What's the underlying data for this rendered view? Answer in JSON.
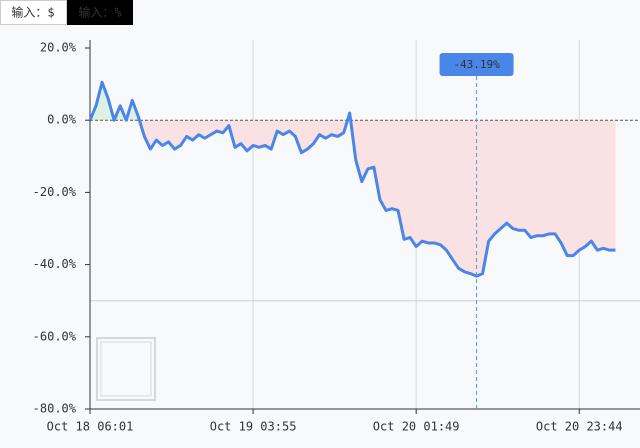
{
  "toggle": {
    "options": [
      "输入：$",
      "输入：%"
    ],
    "active": 1
  },
  "chart_data": {
    "type": "area-line",
    "categories": [
      "Oct 18 06:01",
      null,
      null,
      null,
      null,
      null,
      null,
      null,
      null,
      null,
      null,
      null,
      null,
      null,
      null,
      null,
      null,
      null,
      null,
      null,
      null,
      null,
      null,
      null,
      null,
      null,
      null,
      "Oct 19 03:55",
      null,
      null,
      null,
      null,
      null,
      null,
      null,
      null,
      null,
      null,
      null,
      null,
      null,
      null,
      null,
      null,
      null,
      null,
      null,
      null,
      null,
      null,
      null,
      null,
      null,
      null,
      "Oct 20 01:49",
      null,
      null,
      null,
      null,
      null,
      null,
      null,
      null,
      null,
      null,
      null,
      null,
      null,
      null,
      null,
      null,
      null,
      null,
      null,
      null,
      null,
      null,
      null,
      null,
      null,
      null,
      "Oct 20 23:44",
      null,
      null,
      null,
      null,
      null,
      null
    ],
    "values": [
      0,
      4,
      10.5,
      6,
      0,
      4,
      0,
      5.5,
      1,
      -4.5,
      -8,
      -5.5,
      -7,
      -6,
      -8,
      -7,
      -4.5,
      -5.5,
      -4,
      -5,
      -4,
      -3,
      -3.5,
      -1.5,
      -7.5,
      -6.5,
      -8.5,
      -7,
      -7.5,
      -7,
      -8,
      -3,
      -4,
      -3,
      -4.5,
      -9,
      -8,
      -6.5,
      -4,
      -5,
      -4,
      -4.5,
      -3.5,
      2,
      -11,
      -17,
      -13.5,
      -13,
      -22,
      -25,
      -24.5,
      -25,
      -33,
      -32.5,
      -35,
      -33.5,
      -34,
      -34,
      -34.5,
      -36,
      -38.5,
      -41,
      -42,
      -42.5,
      -43.19,
      -42.5,
      -33.5,
      -31.5,
      -30,
      -28.5,
      -30,
      -30.5,
      -30.5,
      -32.5,
      -32,
      -32,
      -31.5,
      -31.5,
      -34,
      -37.5,
      -37.5,
      -36,
      -35,
      -33.5,
      -36,
      -35.5,
      -36,
      -36
    ],
    "value_labels": [
      null,
      null,
      null,
      null,
      null,
      null,
      null,
      null,
      null,
      null,
      null,
      null,
      null,
      null,
      null,
      null,
      null,
      null,
      null,
      null,
      null,
      null,
      null,
      null,
      null,
      null,
      null,
      null,
      null,
      null,
      null,
      null,
      null,
      null,
      null,
      null,
      null,
      null,
      null,
      null,
      null,
      null,
      null,
      null,
      null,
      null,
      null,
      null,
      null,
      null,
      null,
      null,
      null,
      null,
      null,
      null,
      null,
      null,
      null,
      null,
      null,
      null,
      null,
      null,
      "-43.19%",
      null,
      null,
      null,
      null,
      null,
      null,
      null,
      null,
      null,
      null,
      null,
      null,
      null,
      null,
      null,
      null,
      null,
      null,
      null,
      null,
      null,
      null,
      null
    ],
    "color": "#4a86e8",
    "positive_fill": "#dcf1e3",
    "negative_fill": "#f9e1e4",
    "ylim": [
      -80,
      20
    ],
    "yticks": [
      {
        "value": 20,
        "label": "20.0%"
      },
      {
        "value": 0,
        "label": "0.0%"
      },
      {
        "value": -20,
        "label": "-20.0%"
      },
      {
        "value": -40,
        "label": "-40.0%"
      },
      {
        "value": -60,
        "label": "-60.0%"
      },
      {
        "value": -80,
        "label": "-80.0%"
      }
    ],
    "reference_line": -50,
    "grid": true
  }
}
